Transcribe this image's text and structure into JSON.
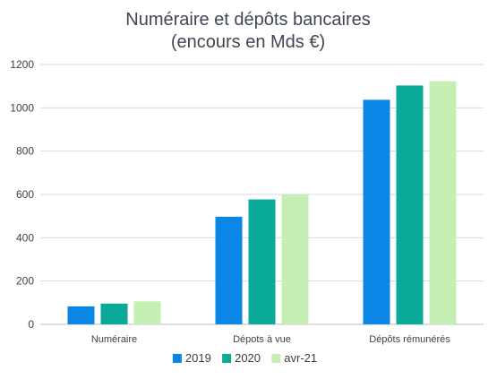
{
  "chart_data": {
    "type": "bar",
    "title_lines": [
      "Numéraire et dépôts bancaires",
      "(encours en Mds €)"
    ],
    "categories": [
      "Numéraire",
      "Dépots à vue",
      "Dépôts rémunérés"
    ],
    "series": [
      {
        "name": "2019",
        "color": "#0a87e6",
        "values": [
          83,
          497,
          1037
        ]
      },
      {
        "name": "2020",
        "color": "#0aa99a",
        "values": [
          96,
          577,
          1103
        ]
      },
      {
        "name": "avr-21",
        "color": "#c6efb4",
        "values": [
          106,
          600,
          1123
        ]
      }
    ],
    "ylim": [
      0,
      1200
    ],
    "yticks": [
      0,
      200,
      400,
      600,
      800,
      1000,
      1200
    ],
    "grid": true,
    "legend_position": "bottom"
  }
}
